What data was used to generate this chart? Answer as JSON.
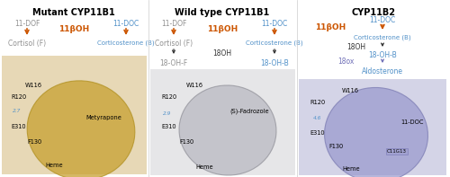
{
  "figsize": [
    5.0,
    1.97
  ],
  "dpi": 100,
  "orange": "#cc5500",
  "black": "#333333",
  "gray": "#909090",
  "blue": "#5090c8",
  "blue2": "#7070b8",
  "panel1": {
    "title": "Mutant CYP11B1",
    "sub_left": "11-DOF",
    "sub_right": "11-DOC",
    "enzyme": "11βOH",
    "prod_left": "Cortisol (F)",
    "prod_right": "Corticosterone (B)",
    "extra": [],
    "ligand": "Metyrapone",
    "dist": "2.7",
    "bg": "#d4b97a",
    "blob": "#c8a030"
  },
  "panel2": {
    "title": "Wild type CYP11B1",
    "sub_left": "11-DOF",
    "sub_right": "11-DOC",
    "enzyme": "11βOH",
    "prod_left": "Cortisol (F)",
    "prod_right": "Corticosterone (B)",
    "extra": [
      [
        "18OH",
        "#333333"
      ],
      [
        "18-OH-F",
        "#909090"
      ],
      [
        "18-OH-B",
        "#5090c8"
      ]
    ],
    "ligand": "(S)-Fadrozole",
    "dist": "2.9",
    "bg": "#c0c0c0",
    "blob": "#b0b0b8"
  },
  "panel3": {
    "title": "CYP11B2",
    "sub_left": "11-DOC",
    "sub_right": null,
    "enzyme": "11βOH",
    "prod_left": "Corticosterone (B)",
    "prod_right": null,
    "extra": [
      [
        "18OH",
        "#333333"
      ],
      [
        "18-OH-B",
        "#5090c8"
      ],
      [
        "18ox",
        "#7070b8"
      ],
      [
        "Aldosterone",
        "#5090c8"
      ]
    ],
    "ligand": "11-DOC",
    "dist": "4.6",
    "bg": "#9090c8",
    "blob": "#9898cc"
  }
}
